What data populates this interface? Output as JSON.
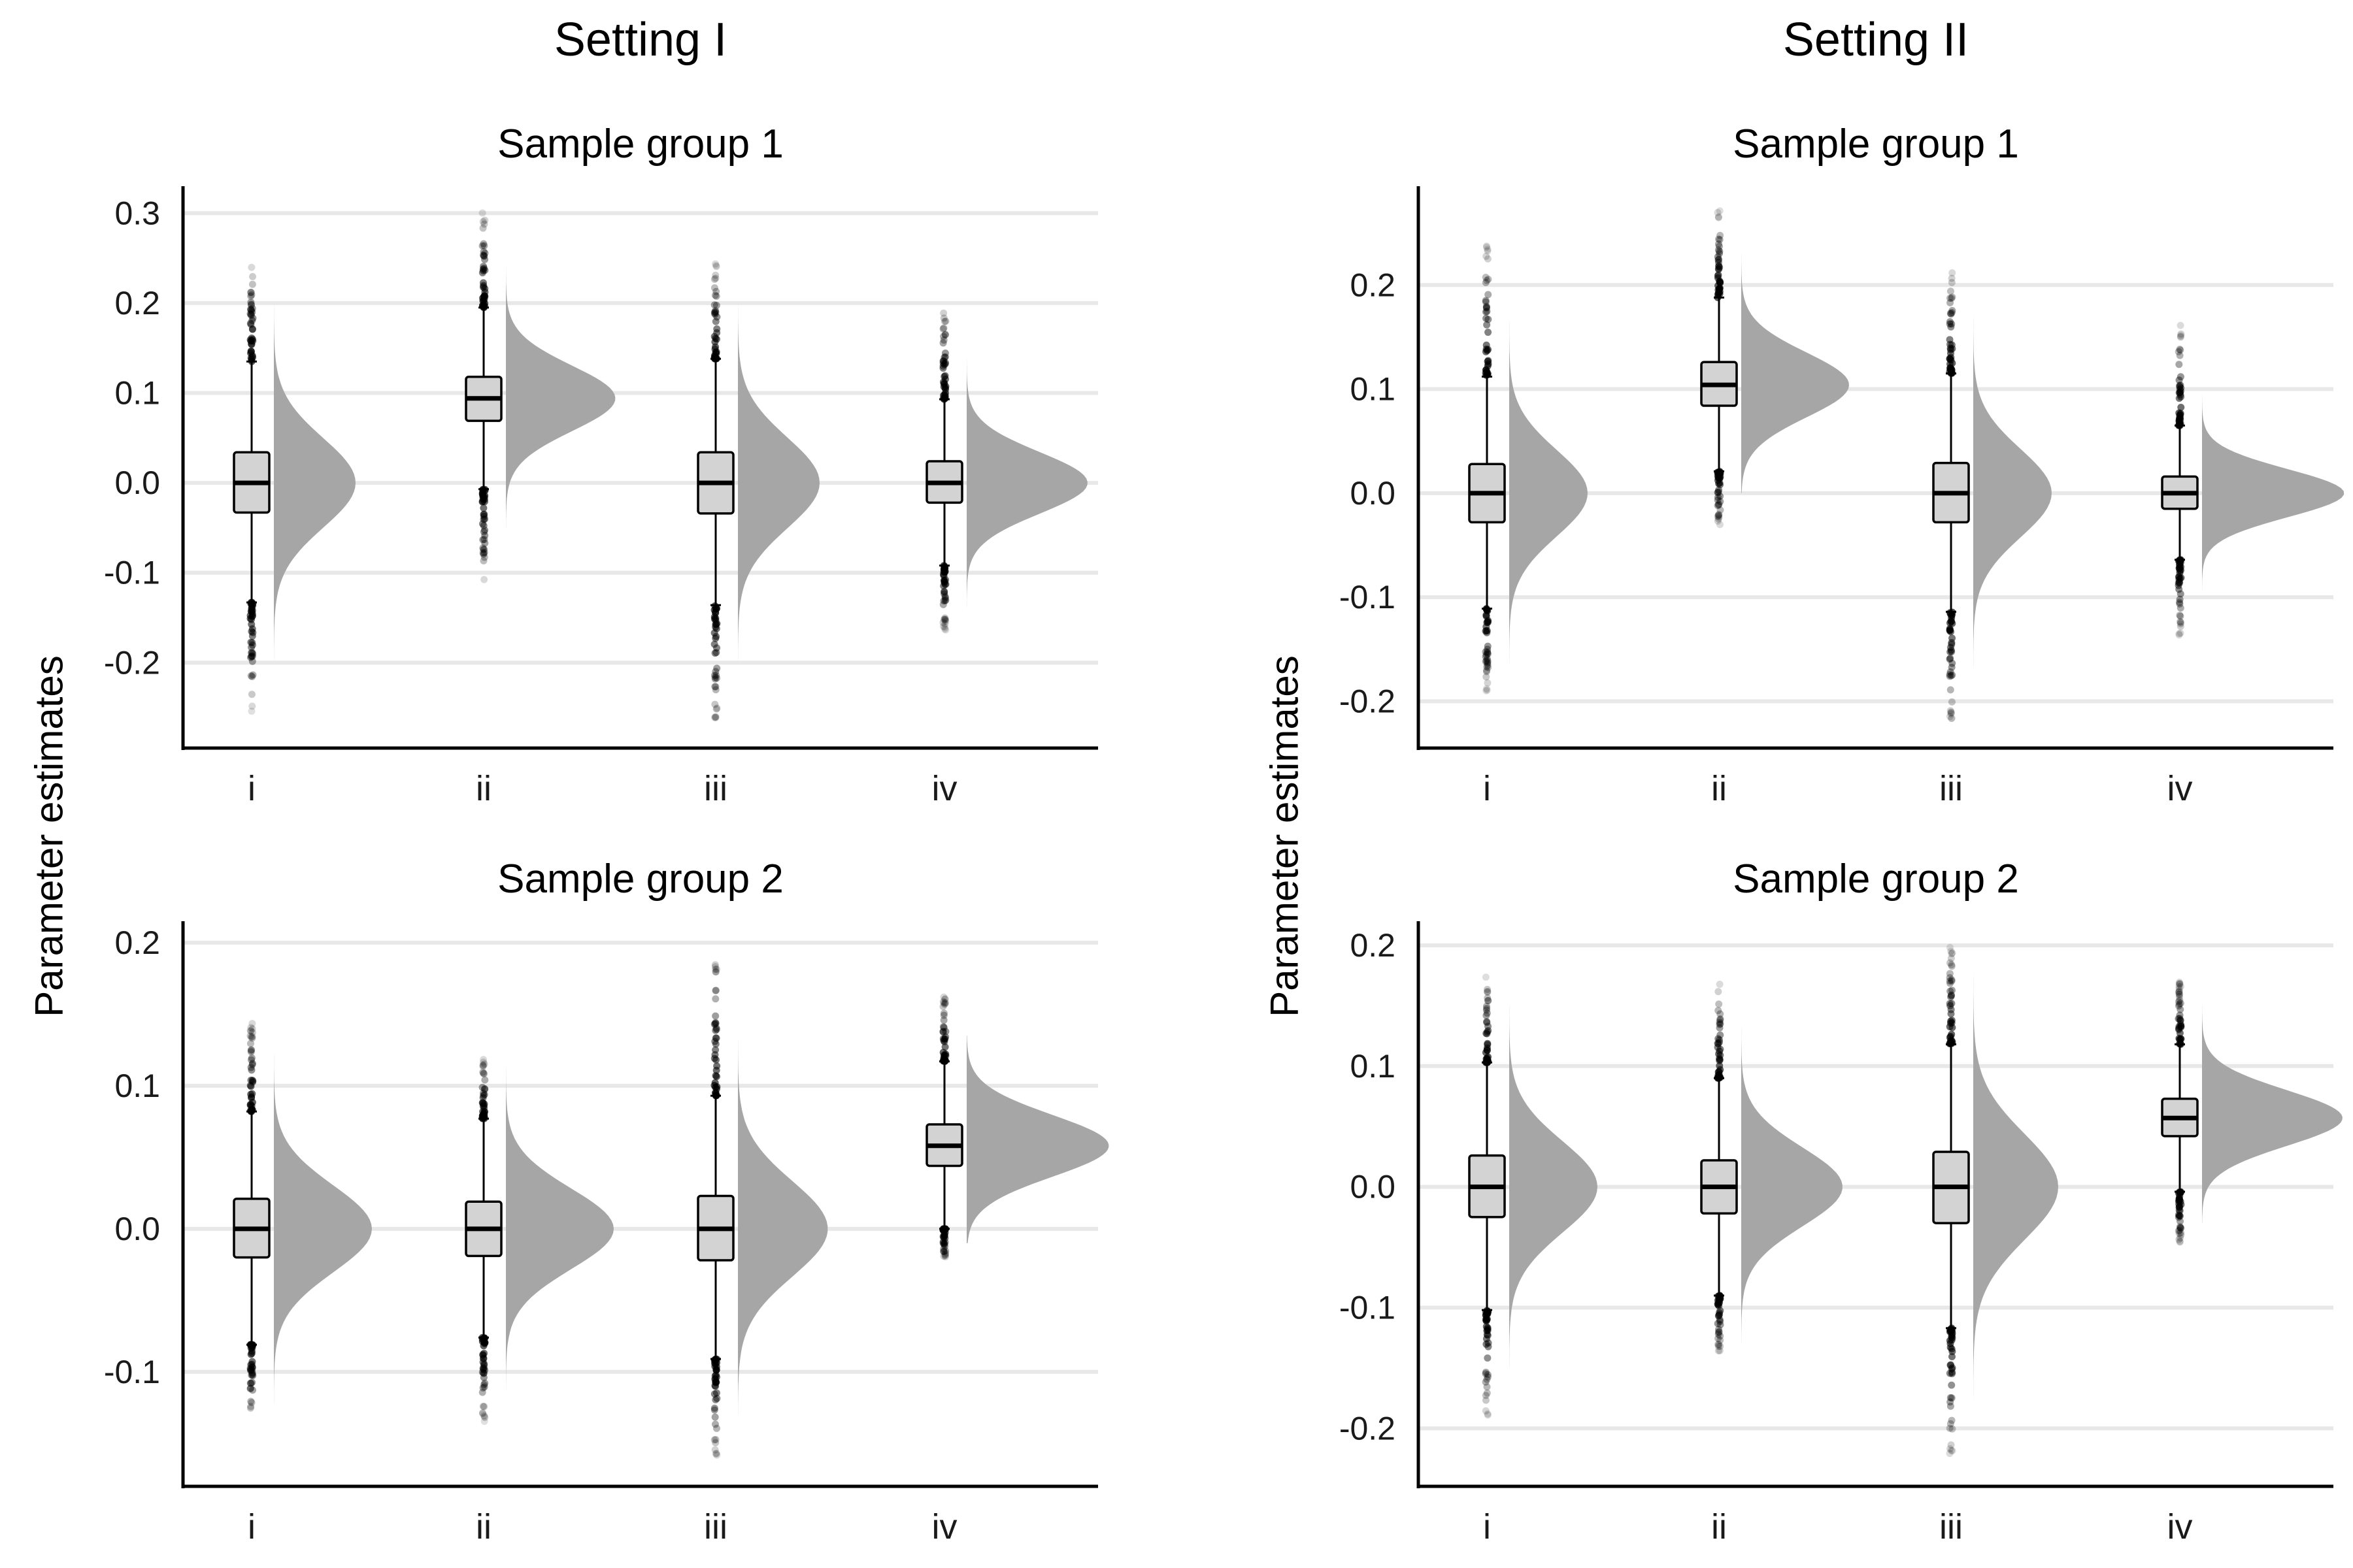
{
  "figure": {
    "settings": [
      {
        "title": "Setting I"
      },
      {
        "title": "Setting II"
      }
    ],
    "ylabel": "Parameter estimates",
    "group_titles": [
      "Sample group 1",
      "Sample group 2"
    ],
    "colors": {
      "box_fill": "#d3d3d3",
      "density_fill": "#a6a6a6",
      "gridline": "#e8e8e8",
      "axis": "#000000",
      "outlier": "#000000"
    }
  },
  "chart_data": [
    {
      "type": "raincloud",
      "setting": "Setting I",
      "title": "Sample group 1",
      "xlabel": "",
      "ylabel": "Parameter estimates",
      "categories": [
        "i",
        "ii",
        "iii",
        "iv"
      ],
      "ylim": [
        -0.295,
        0.33
      ],
      "yticks": [
        -0.2,
        -0.1,
        0.0,
        0.1,
        0.2,
        0.3
      ],
      "ytick_labels": [
        "-0.2",
        "-0.1",
        "0.0",
        "0.1",
        "0.2",
        "0.3"
      ],
      "boxes": [
        {
          "median": 0.0,
          "q1": -0.033,
          "q3": 0.034,
          "whisker_low": -0.133,
          "whisker_high": 0.135,
          "min": -0.255,
          "max": 0.245,
          "density_height": 0.5,
          "density_low": -0.2,
          "density_high": 0.2
        },
        {
          "median": 0.094,
          "q1": 0.069,
          "q3": 0.118,
          "whisker_low": -0.007,
          "whisker_high": 0.195,
          "min": -0.113,
          "max": 0.305,
          "density_height": 0.67,
          "density_low": -0.05,
          "density_high": 0.24
        },
        {
          "median": 0.0,
          "q1": -0.034,
          "q3": 0.034,
          "whisker_low": -0.136,
          "whisker_high": 0.138,
          "min": -0.27,
          "max": 0.245,
          "density_height": 0.5,
          "density_low": -0.2,
          "density_high": 0.2
        },
        {
          "median": 0.0,
          "q1": -0.022,
          "q3": 0.024,
          "whisker_low": -0.092,
          "whisker_high": 0.093,
          "min": -0.165,
          "max": 0.2,
          "density_height": 0.74,
          "density_low": -0.14,
          "density_high": 0.15
        }
      ]
    },
    {
      "type": "raincloud",
      "setting": "Setting I",
      "title": "Sample group 2",
      "xlabel": "",
      "ylabel": "Parameter estimates",
      "categories": [
        "i",
        "ii",
        "iii",
        "iv"
      ],
      "ylim": [
        -0.18,
        0.215
      ],
      "yticks": [
        -0.1,
        0.0,
        0.1,
        0.2
      ],
      "ytick_labels": [
        "-0.1",
        "0.0",
        "0.1",
        "0.2"
      ],
      "boxes": [
        {
          "median": 0.0,
          "q1": -0.02,
          "q3": 0.021,
          "whisker_low": -0.081,
          "whisker_high": 0.082,
          "min": -0.135,
          "max": 0.147,
          "density_height": 0.6,
          "density_low": -0.13,
          "density_high": 0.13
        },
        {
          "median": 0.0,
          "q1": -0.019,
          "q3": 0.019,
          "whisker_low": -0.076,
          "whisker_high": 0.077,
          "min": -0.135,
          "max": 0.12,
          "density_height": 0.66,
          "density_low": -0.12,
          "density_high": 0.12
        },
        {
          "median": 0.0,
          "q1": -0.022,
          "q3": 0.023,
          "whisker_low": -0.091,
          "whisker_high": 0.093,
          "min": -0.162,
          "max": 0.197,
          "density_height": 0.55,
          "density_low": -0.13,
          "density_high": 0.14
        },
        {
          "median": 0.058,
          "q1": 0.044,
          "q3": 0.073,
          "whisker_low": 0.0,
          "whisker_high": 0.117,
          "min": -0.022,
          "max": 0.165,
          "density_height": 0.87,
          "density_low": -0.01,
          "density_high": 0.135
        }
      ]
    },
    {
      "type": "raincloud",
      "setting": "Setting II",
      "title": "Sample group 1",
      "xlabel": "",
      "ylabel": "Parameter estimates",
      "categories": [
        "i",
        "ii",
        "iii",
        "iv"
      ],
      "ylim": [
        -0.245,
        0.295
      ],
      "yticks": [
        -0.2,
        -0.1,
        0.0,
        0.1,
        0.2
      ],
      "ytick_labels": [
        "-0.2",
        "-0.1",
        "0.0",
        "0.1",
        "0.2"
      ],
      "boxes": [
        {
          "median": 0.0,
          "q1": -0.028,
          "q3": 0.028,
          "whisker_low": -0.111,
          "whisker_high": 0.112,
          "min": -0.19,
          "max": 0.24,
          "density_height": 0.48,
          "density_low": -0.17,
          "density_high": 0.18
        },
        {
          "median": 0.104,
          "q1": 0.084,
          "q3": 0.126,
          "whisker_low": 0.021,
          "whisker_high": 0.188,
          "min": -0.032,
          "max": 0.272,
          "density_height": 0.66,
          "density_low": 0.0,
          "density_high": 0.25
        },
        {
          "median": 0.0,
          "q1": -0.028,
          "q3": 0.029,
          "whisker_low": -0.114,
          "whisker_high": 0.115,
          "min": -0.222,
          "max": 0.218,
          "density_height": 0.48,
          "density_low": -0.19,
          "density_high": 0.2
        },
        {
          "median": 0.0,
          "q1": -0.015,
          "q3": 0.016,
          "whisker_low": -0.064,
          "whisker_high": 0.065,
          "min": -0.138,
          "max": 0.165,
          "density_height": 0.87,
          "density_low": -0.12,
          "density_high": 0.13
        }
      ]
    },
    {
      "type": "raincloud",
      "setting": "Setting II",
      "title": "Sample group 2",
      "xlabel": "",
      "ylabel": "Parameter estimates",
      "categories": [
        "i",
        "ii",
        "iii",
        "iv"
      ],
      "ylim": [
        -0.248,
        0.22
      ],
      "yticks": [
        -0.2,
        -0.1,
        0.0,
        0.1,
        0.2
      ],
      "ytick_labels": [
        "-0.2",
        "-0.1",
        "0.0",
        "0.1",
        "0.2"
      ],
      "boxes": [
        {
          "median": 0.0,
          "q1": -0.025,
          "q3": 0.026,
          "whisker_low": -0.102,
          "whisker_high": 0.103,
          "min": -0.192,
          "max": 0.175,
          "density_height": 0.54,
          "density_low": -0.15,
          "density_high": 0.15
        },
        {
          "median": 0.0,
          "q1": -0.022,
          "q3": 0.022,
          "whisker_low": -0.09,
          "whisker_high": 0.09,
          "min": -0.14,
          "max": 0.17,
          "density_height": 0.62,
          "density_low": -0.13,
          "density_high": 0.14
        },
        {
          "median": 0.0,
          "q1": -0.03,
          "q3": 0.029,
          "whisker_low": -0.117,
          "whisker_high": 0.118,
          "min": -0.225,
          "max": 0.2,
          "density_height": 0.52,
          "density_low": -0.18,
          "density_high": 0.19
        },
        {
          "median": 0.057,
          "q1": 0.042,
          "q3": 0.073,
          "whisker_low": -0.004,
          "whisker_high": 0.118,
          "min": -0.048,
          "max": 0.17,
          "density_height": 0.86,
          "density_low": -0.03,
          "density_high": 0.15
        }
      ]
    }
  ]
}
